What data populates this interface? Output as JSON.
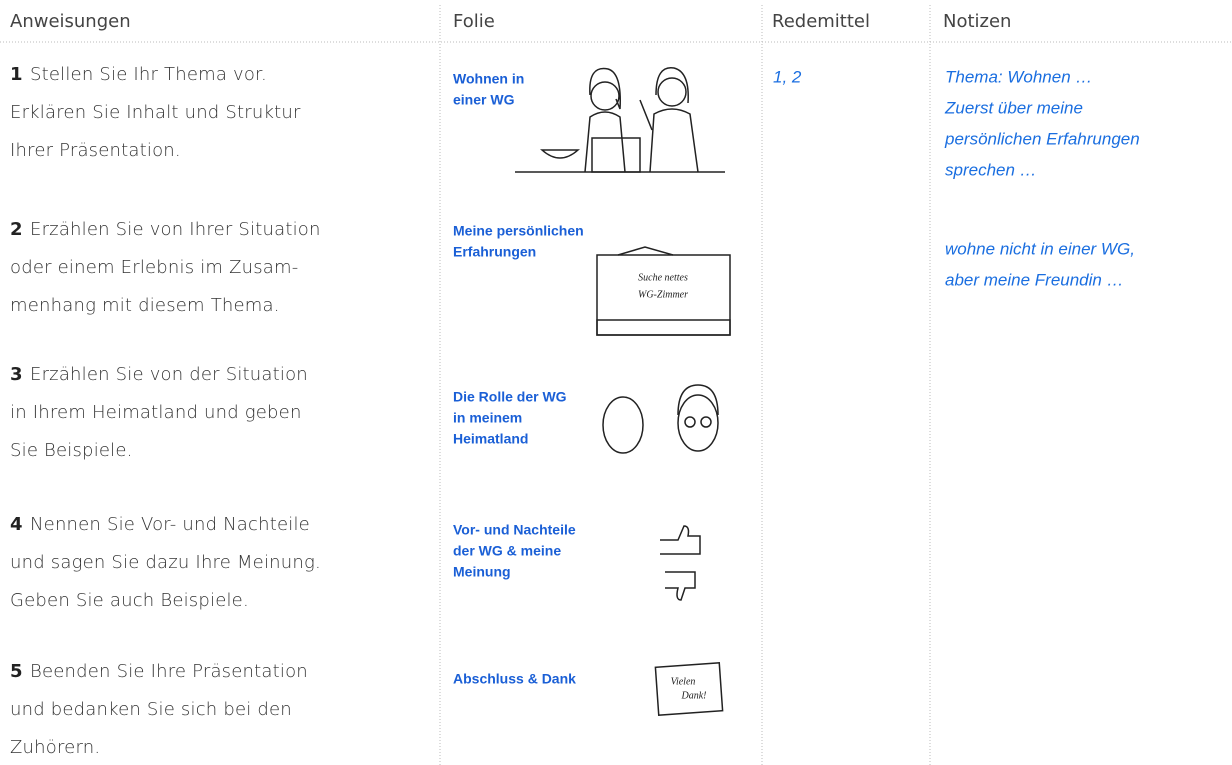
{
  "header": {
    "instructions": "Anweisungen",
    "slide": "Folie",
    "phrases": "Redemittel",
    "notes": "Notizen"
  },
  "rows": [
    {
      "number": "1",
      "lines": [
        "Stellen Sie Ihr Thema vor.",
        "Erklären Sie Inhalt und Struktur",
        "Ihrer Präsentation."
      ],
      "slide_lines": [
        "Wohnen in",
        "einer WG"
      ],
      "phrases": "1, 2"
    },
    {
      "number": "2",
      "lines": [
        "Erzählen Sie von Ihrer Situation",
        "oder einem Erlebnis im Zusam-",
        "menhang mit diesem Thema."
      ],
      "slide_lines": [
        "Meine persönlichen",
        "Erfahrungen"
      ]
    },
    {
      "number": "3",
      "lines": [
        "Erzählen Sie von der Situation",
        "in Ihrem Heimatland und geben",
        "Sie Beispiele."
      ],
      "slide_lines": [
        "Die Rolle der WG",
        "in meinem",
        "Heimatland"
      ]
    },
    {
      "number": "4",
      "lines": [
        "Nennen Sie Vor- und Nachteile",
        "und sagen Sie dazu Ihre Meinung.",
        "Geben Sie auch Beispiele."
      ],
      "slide_lines": [
        "Vor- und Nachteile",
        "der WG & meine",
        "Meinung"
      ]
    },
    {
      "number": "5",
      "lines": [
        "Beenden Sie Ihre Präsentation",
        "und bedanken Sie sich bei den",
        "Zuhörern."
      ],
      "slide_lines": [
        "Abschluss & Dank"
      ]
    }
  ],
  "notes": [
    [
      "Thema: Wohnen …",
      "Zuerst über meine",
      "persönlichen Erfahrungen",
      "sprechen …"
    ],
    [
      "wohne nicht in einer WG,",
      "aber meine Freundin …"
    ]
  ],
  "image_texts": {
    "sign": [
      "Suche nettes",
      "WG-Zimmer"
    ],
    "card": [
      "Vielen",
      "Dank!"
    ]
  }
}
